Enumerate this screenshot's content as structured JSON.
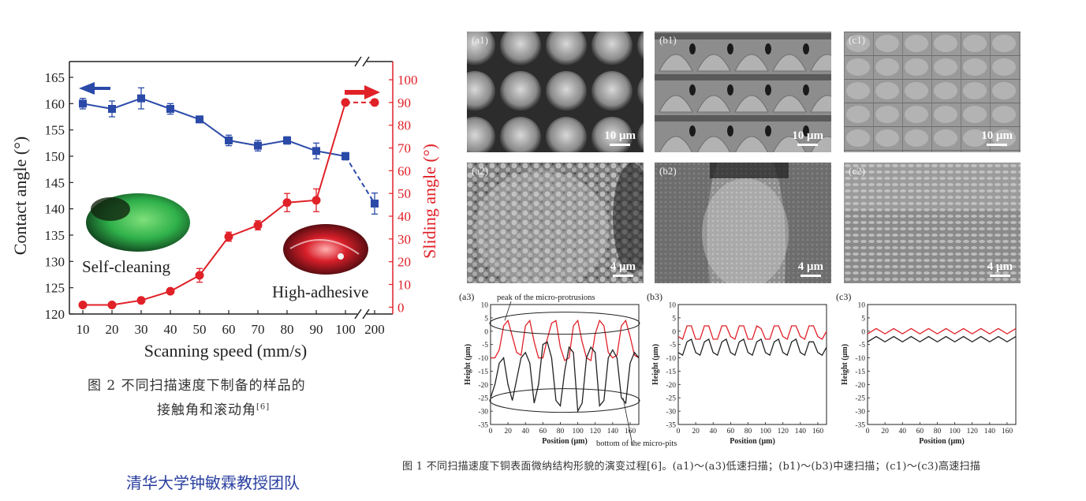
{
  "left_figure": {
    "y_left_label": "Contact angle (°)",
    "y_right_label": "Sliding angle (°)",
    "x_label": "Scanning speed (mm/s)",
    "inset_left": "Self-cleaning",
    "inset_right": "High-adhesive"
  },
  "left_caption": {
    "line1": "图 2   不同扫描速度下制备的样品的",
    "line2": "接触角和滚动角",
    "ref": "[6]"
  },
  "credit": "清华大学钟敏霖教授团队",
  "sem_panels": [
    {
      "label": "(a1)",
      "scale": "10 μm"
    },
    {
      "label": "(b1)",
      "scale": "10 μm"
    },
    {
      "label": "(c1)",
      "scale": "10 μm"
    },
    {
      "label": "(a2)",
      "scale": "4 μm"
    },
    {
      "label": "(b2)",
      "scale": "4 μm"
    },
    {
      "label": "(c2)",
      "scale": "4 μm"
    }
  ],
  "profile_panels": [
    {
      "label": "(a3)"
    },
    {
      "label": "(b3)"
    },
    {
      "label": "(c3)"
    }
  ],
  "profile_axes": {
    "x_label": "Position (μm)",
    "y_label": "Height (μm)",
    "a3_annotation_top": "peak of the micro-protrusions",
    "a3_annotation_bottom": "bottom of the micro-pits"
  },
  "right_caption": "图 1   不同扫描速度下铜表面微纳结构形貌的演变过程[6]。(a1)～(a3)低速扫描；(b1)～(b3)中速扫描；(c1)～(c3)高速扫描",
  "colors": {
    "blue": "#2b4aa8",
    "red": "#e02128"
  },
  "chart_data": [
    {
      "type": "line",
      "xlabel": "Scanning speed (mm/s)",
      "categories": [
        "10",
        "20",
        "30",
        "40",
        "50",
        "60",
        "70",
        "80",
        "90",
        "100",
        "200"
      ],
      "series": [
        {
          "name": "Contact angle",
          "axis": "left",
          "color": "#2b4aa8",
          "values": [
            160,
            159,
            161,
            159,
            157,
            153,
            152,
            153,
            151,
            150,
            141
          ],
          "errors": [
            1,
            1.5,
            2,
            1,
            0.5,
            1,
            1,
            0.7,
            1.5,
            0.7,
            2
          ]
        },
        {
          "name": "Sliding angle",
          "axis": "right",
          "color": "#e02128",
          "values": [
            1,
            1,
            3,
            7,
            14,
            31,
            36,
            46,
            47,
            90,
            90
          ],
          "errors": [
            0,
            0,
            0,
            0,
            3,
            2,
            2,
            4,
            5,
            0,
            0
          ]
        }
      ],
      "ylabel": "Contact angle (°)",
      "y2label": "Sliding angle (°)",
      "ylim": [
        120,
        168
      ],
      "y2lim": [
        -3,
        108
      ],
      "yticks": [
        "120",
        "125",
        "130",
        "135",
        "140",
        "145",
        "150",
        "155",
        "160",
        "165"
      ],
      "y2ticks": [
        "0",
        "10",
        "20",
        "30",
        "40",
        "50",
        "60",
        "70",
        "80",
        "90",
        "100"
      ]
    },
    {
      "type": "line",
      "title": "(a3)",
      "xlabel": "Position (μm)",
      "ylabel": "Height (μm)",
      "xlim": [
        0,
        170
      ],
      "ylim": [
        -35,
        10
      ],
      "xticks": [
        "0",
        "20",
        "40",
        "60",
        "80",
        "100",
        "120",
        "140",
        "160"
      ],
      "yticks": [
        "10",
        "5",
        "0",
        "-5",
        "-10",
        "-15",
        "-20",
        "-25",
        "-30",
        "-35"
      ],
      "series": [
        {
          "color": "#e02128",
          "x": [
            0,
            5,
            10,
            15,
            20,
            25,
            30,
            35,
            40,
            45,
            50,
            55,
            60,
            65,
            70,
            75,
            80,
            85,
            90,
            95,
            100,
            105,
            110,
            115,
            120,
            125,
            130,
            135,
            140,
            145,
            150,
            155,
            160,
            165,
            170
          ],
          "values": [
            -10,
            -10,
            -7,
            2,
            4,
            -2,
            -8,
            -9,
            2,
            4,
            -4,
            -10,
            -10,
            -3,
            3,
            4,
            -6,
            -11,
            -10,
            2,
            4,
            -4,
            -10,
            -11,
            -1,
            4,
            2,
            -8,
            -10,
            -9,
            2,
            4,
            -2,
            -9,
            -10
          ]
        },
        {
          "color": "#222222",
          "x": [
            0,
            5,
            10,
            15,
            20,
            25,
            30,
            35,
            40,
            45,
            50,
            55,
            60,
            65,
            70,
            75,
            80,
            85,
            90,
            95,
            100,
            105,
            110,
            115,
            120,
            125,
            130,
            135,
            140,
            145,
            150,
            155,
            160,
            165,
            170
          ],
          "values": [
            -25,
            -20,
            -12,
            -10,
            -20,
            -26,
            -18,
            -10,
            -8,
            -12,
            -27,
            -20,
            -5,
            -4,
            -10,
            -26,
            -28,
            -15,
            -6,
            -8,
            -30,
            -27,
            -10,
            -6,
            -8,
            -28,
            -26,
            -10,
            -7,
            -10,
            -25,
            -27,
            -12,
            -8,
            -10
          ]
        }
      ]
    },
    {
      "type": "line",
      "title": "(b3)",
      "xlabel": "Position (μm)",
      "ylabel": "Height (μm)",
      "xlim": [
        0,
        170
      ],
      "ylim": [
        -35,
        10
      ],
      "xticks": [
        "0",
        "20",
        "40",
        "60",
        "80",
        "100",
        "120",
        "140",
        "160"
      ],
      "yticks": [
        "10",
        "5",
        "0",
        "-5",
        "-10",
        "-15",
        "-20",
        "-25",
        "-30",
        "-35"
      ],
      "series": [
        {
          "color": "#e02128",
          "x": [
            0,
            5,
            10,
            15,
            20,
            25,
            30,
            35,
            40,
            45,
            50,
            55,
            60,
            65,
            70,
            75,
            80,
            85,
            90,
            95,
            100,
            105,
            110,
            115,
            120,
            125,
            130,
            135,
            140,
            145,
            150,
            155,
            160,
            165,
            170
          ],
          "values": [
            -2,
            -3,
            2,
            2,
            -3,
            -3,
            2,
            2,
            -3,
            -3,
            2,
            2,
            -2,
            -3,
            2,
            2,
            -3,
            -3,
            2,
            1,
            -3,
            -3,
            2,
            2,
            -2,
            -3,
            2,
            2,
            -2,
            -3,
            2,
            2,
            -2,
            -3,
            0
          ]
        },
        {
          "color": "#222222",
          "x": [
            0,
            5,
            10,
            15,
            20,
            25,
            30,
            35,
            40,
            45,
            50,
            55,
            60,
            65,
            70,
            75,
            80,
            85,
            90,
            95,
            100,
            105,
            110,
            115,
            120,
            125,
            130,
            135,
            140,
            145,
            150,
            155,
            160,
            165,
            170
          ],
          "values": [
            -8,
            -9,
            -4,
            -3,
            -8,
            -9,
            -4,
            -3,
            -8,
            -9,
            -4,
            -3,
            -8,
            -9,
            -4,
            -3,
            -8,
            -9,
            -4,
            -3,
            -8,
            -9,
            -4,
            -3,
            -8,
            -9,
            -4,
            -3,
            -8,
            -9,
            -4,
            -4,
            -8,
            -9,
            -6
          ]
        }
      ]
    },
    {
      "type": "line",
      "title": "(c3)",
      "xlabel": "Position (μm)",
      "ylabel": "Height (μm)",
      "xlim": [
        0,
        170
      ],
      "ylim": [
        -35,
        10
      ],
      "xticks": [
        "0",
        "20",
        "40",
        "60",
        "80",
        "100",
        "120",
        "140",
        "160"
      ],
      "yticks": [
        "10",
        "5",
        "0",
        "-5",
        "-10",
        "-15",
        "-20",
        "-25",
        "-30",
        "-35"
      ],
      "series": [
        {
          "color": "#e02128",
          "x": [
            0,
            10,
            20,
            30,
            40,
            50,
            60,
            70,
            80,
            90,
            100,
            110,
            120,
            130,
            140,
            150,
            160,
            170
          ],
          "values": [
            -1,
            1,
            -1,
            1,
            -1,
            1,
            -1,
            1,
            -1,
            1,
            -1,
            1,
            -1,
            1,
            -1,
            1,
            -1,
            1
          ]
        },
        {
          "color": "#222222",
          "x": [
            0,
            10,
            20,
            30,
            40,
            50,
            60,
            70,
            80,
            90,
            100,
            110,
            120,
            130,
            140,
            150,
            160,
            170
          ],
          "values": [
            -4,
            -2,
            -4,
            -2,
            -4,
            -2,
            -4,
            -2,
            -4,
            -2,
            -4,
            -2,
            -4,
            -2,
            -4,
            -2,
            -4,
            -2
          ]
        }
      ]
    }
  ]
}
